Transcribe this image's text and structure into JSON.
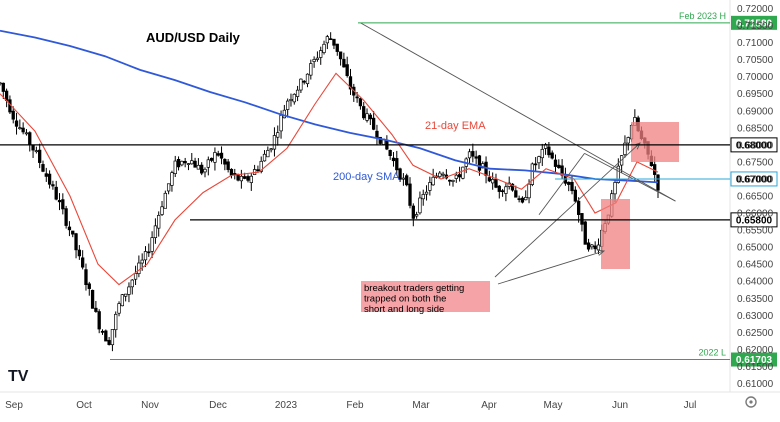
{
  "chart_data": {
    "type": "candlestick",
    "title": "AUD/USD Daily",
    "x_ticks": [
      "Sep",
      "Oct",
      "Nov",
      "Dec",
      "2023",
      "Feb",
      "Mar",
      "Apr",
      "May",
      "Jun",
      "Jul"
    ],
    "y_ticks": [
      0.72,
      0.715,
      0.71,
      0.705,
      0.7,
      0.695,
      0.69,
      0.685,
      0.68,
      0.675,
      0.67,
      0.665,
      0.66,
      0.655,
      0.65,
      0.645,
      0.64,
      0.635,
      0.63,
      0.625,
      0.62,
      0.615,
      0.61
    ],
    "y_tick_labels": [
      "0.72000",
      "0.71500",
      "0.71000",
      "0.70500",
      "0.70000",
      "0.69500",
      "0.69000",
      "0.68500",
      "0.68000",
      "0.67500",
      "0.67000",
      "0.66500",
      "0.66000",
      "0.65500",
      "0.65000",
      "0.64500",
      "0.64000",
      "0.63500",
      "0.63000",
      "0.62500",
      "0.62000",
      "0.61500",
      "0.61000"
    ],
    "ylim": [
      0.6075,
      0.7225
    ],
    "series": [
      {
        "name": "21-day EMA",
        "color": "#e8483a"
      },
      {
        "name": "200-day SMA",
        "color": "#2f59d8"
      }
    ],
    "price_path": [
      {
        "t": 0.0,
        "p": 0.698
      },
      {
        "t": 0.02,
        "p": 0.688
      },
      {
        "t": 0.05,
        "p": 0.678
      },
      {
        "t": 0.08,
        "p": 0.665
      },
      {
        "t": 0.1,
        "p": 0.655
      },
      {
        "t": 0.12,
        "p": 0.642
      },
      {
        "t": 0.14,
        "p": 0.628
      },
      {
        "t": 0.155,
        "p": 0.622
      },
      {
        "t": 0.17,
        "p": 0.633
      },
      {
        "t": 0.19,
        "p": 0.641
      },
      {
        "t": 0.21,
        "p": 0.648
      },
      {
        "t": 0.23,
        "p": 0.662
      },
      {
        "t": 0.25,
        "p": 0.674
      },
      {
        "t": 0.27,
        "p": 0.676
      },
      {
        "t": 0.29,
        "p": 0.672
      },
      {
        "t": 0.31,
        "p": 0.678
      },
      {
        "t": 0.33,
        "p": 0.671
      },
      {
        "t": 0.35,
        "p": 0.669
      },
      {
        "t": 0.37,
        "p": 0.674
      },
      {
        "t": 0.39,
        "p": 0.681
      },
      {
        "t": 0.41,
        "p": 0.693
      },
      {
        "t": 0.43,
        "p": 0.698
      },
      {
        "t": 0.45,
        "p": 0.705
      },
      {
        "t": 0.47,
        "p": 0.712
      },
      {
        "t": 0.48,
        "p": 0.709
      },
      {
        "t": 0.5,
        "p": 0.697
      },
      {
        "t": 0.52,
        "p": 0.689
      },
      {
        "t": 0.54,
        "p": 0.683
      },
      {
        "t": 0.56,
        "p": 0.676
      },
      {
        "t": 0.58,
        "p": 0.668
      },
      {
        "t": 0.59,
        "p": 0.659
      },
      {
        "t": 0.61,
        "p": 0.667
      },
      {
        "t": 0.63,
        "p": 0.673
      },
      {
        "t": 0.65,
        "p": 0.669
      },
      {
        "t": 0.67,
        "p": 0.677
      },
      {
        "t": 0.69,
        "p": 0.673
      },
      {
        "t": 0.71,
        "p": 0.667
      },
      {
        "t": 0.73,
        "p": 0.669
      },
      {
        "t": 0.745,
        "p": 0.661
      },
      {
        "t": 0.76,
        "p": 0.673
      },
      {
        "t": 0.78,
        "p": 0.679
      },
      {
        "t": 0.8,
        "p": 0.672
      },
      {
        "t": 0.82,
        "p": 0.666
      },
      {
        "t": 0.835,
        "p": 0.652
      },
      {
        "t": 0.85,
        "p": 0.649
      },
      {
        "t": 0.87,
        "p": 0.661
      },
      {
        "t": 0.89,
        "p": 0.678
      },
      {
        "t": 0.905,
        "p": 0.688
      },
      {
        "t": 0.915,
        "p": 0.682
      },
      {
        "t": 0.93,
        "p": 0.675
      },
      {
        "t": 0.94,
        "p": 0.668
      }
    ],
    "ema_path": [
      {
        "t": 0.0,
        "p": 0.695
      },
      {
        "t": 0.05,
        "p": 0.684
      },
      {
        "t": 0.1,
        "p": 0.665
      },
      {
        "t": 0.14,
        "p": 0.645
      },
      {
        "t": 0.17,
        "p": 0.639
      },
      {
        "t": 0.21,
        "p": 0.645
      },
      {
        "t": 0.25,
        "p": 0.658
      },
      {
        "t": 0.29,
        "p": 0.666
      },
      {
        "t": 0.33,
        "p": 0.671
      },
      {
        "t": 0.37,
        "p": 0.672
      },
      {
        "t": 0.41,
        "p": 0.679
      },
      {
        "t": 0.45,
        "p": 0.692
      },
      {
        "t": 0.48,
        "p": 0.701
      },
      {
        "t": 0.52,
        "p": 0.693
      },
      {
        "t": 0.56,
        "p": 0.683
      },
      {
        "t": 0.59,
        "p": 0.674
      },
      {
        "t": 0.63,
        "p": 0.67
      },
      {
        "t": 0.67,
        "p": 0.673
      },
      {
        "t": 0.71,
        "p": 0.67
      },
      {
        "t": 0.745,
        "p": 0.667
      },
      {
        "t": 0.78,
        "p": 0.673
      },
      {
        "t": 0.82,
        "p": 0.67
      },
      {
        "t": 0.85,
        "p": 0.66
      },
      {
        "t": 0.88,
        "p": 0.663
      },
      {
        "t": 0.91,
        "p": 0.675
      },
      {
        "t": 0.94,
        "p": 0.672
      }
    ],
    "sma_path": [
      {
        "t": 0.0,
        "p": 0.7135
      },
      {
        "t": 0.05,
        "p": 0.7115
      },
      {
        "t": 0.1,
        "p": 0.709
      },
      {
        "t": 0.15,
        "p": 0.706
      },
      {
        "t": 0.2,
        "p": 0.702
      },
      {
        "t": 0.25,
        "p": 0.699
      },
      {
        "t": 0.3,
        "p": 0.6955
      },
      {
        "t": 0.35,
        "p": 0.6925
      },
      {
        "t": 0.4,
        "p": 0.689
      },
      {
        "t": 0.45,
        "p": 0.686
      },
      {
        "t": 0.5,
        "p": 0.6835
      },
      {
        "t": 0.55,
        "p": 0.6815
      },
      {
        "t": 0.6,
        "p": 0.679
      },
      {
        "t": 0.65,
        "p": 0.6755
      },
      {
        "t": 0.7,
        "p": 0.673
      },
      {
        "t": 0.75,
        "p": 0.6725
      },
      {
        "t": 0.8,
        "p": 0.6715
      },
      {
        "t": 0.85,
        "p": 0.67
      },
      {
        "t": 0.9,
        "p": 0.6695
      },
      {
        "t": 0.94,
        "p": 0.669
      }
    ],
    "horizontal_levels": [
      {
        "value": 0.7158,
        "label": "0.71580",
        "note": "Feb 2023 H",
        "color": "#2fa84f",
        "box": "green"
      },
      {
        "value": 0.68,
        "label": "0.68000",
        "color": "#000000",
        "box": "white"
      },
      {
        "value": 0.67,
        "label": "0.67000",
        "color": "#2aa7d8",
        "box": "white"
      },
      {
        "value": 0.658,
        "label": "0.65800",
        "color": "#000000",
        "box": "white"
      },
      {
        "value": 0.61703,
        "label": "0.61703",
        "note": "2022 L",
        "color": "#2fa84f",
        "box": "green"
      }
    ],
    "annotations": {
      "ema_label": "21-day EMA",
      "sma_label": "200-day SMA",
      "callout": "breakout traders getting trapped on both the short and long side"
    }
  },
  "ui": {
    "logo_text": "TV",
    "settings_icon": "gear-icon"
  }
}
